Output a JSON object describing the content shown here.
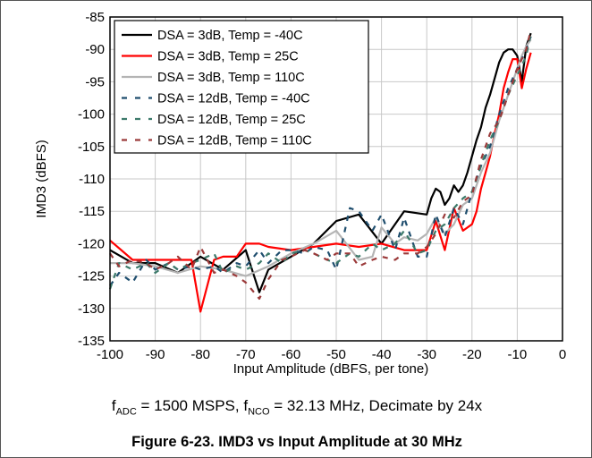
{
  "caption": "Figure 6-23. IMD3 vs Input Amplitude at 30 MHz",
  "condition": {
    "f1_main": "f",
    "f1_sub": "ADC",
    "f1_rest": " = 1500 MSPS, ",
    "f2_main": "f",
    "f2_sub": "NCO",
    "f2_rest": " = 32.13 MHz, Decimate by 24x"
  },
  "chart_data": {
    "type": "line",
    "xlabel": "Input Amplitude (dBFS, per tone)",
    "ylabel": "IMD3 (dBFS)",
    "xlim": [
      -100,
      0
    ],
    "ylim": [
      -135,
      -85
    ],
    "xticks": [
      "-100",
      "-90",
      "-80",
      "-70",
      "-60",
      "-50",
      "-40",
      "-30",
      "-20",
      "-10",
      "0"
    ],
    "yticks": [
      "-85",
      "-90",
      "-95",
      "-100",
      "-105",
      "-110",
      "-115",
      "-120",
      "-125",
      "-130",
      "-135"
    ],
    "grid": true,
    "legend_position": "top-left",
    "series": [
      {
        "name": "DSA = 3dB, Temp = -40C",
        "color": "#000000",
        "dash": "solid",
        "x": [
          -100,
          -95,
          -90,
          -85,
          -80,
          -75,
          -70,
          -67,
          -65,
          -60,
          -55,
          -50,
          -45,
          -40,
          -35,
          -30,
          -29,
          -28,
          -27,
          -26,
          -25,
          -24,
          -23,
          -22,
          -21,
          -20,
          -19,
          -18,
          -17,
          -16,
          -15,
          -14,
          -13,
          -12,
          -11,
          -10,
          -9,
          -8,
          -7
        ],
        "y": [
          -121,
          -123,
          -123,
          -124.5,
          -122,
          -124,
          -121,
          -127.5,
          -124,
          -122,
          -120,
          -116.5,
          -115.5,
          -120,
          -115,
          -115.5,
          -113,
          -111.5,
          -112,
          -114,
          -113,
          -111,
          -112,
          -111,
          -109,
          -106.5,
          -104,
          -102,
          -99,
          -97,
          -94.5,
          -92,
          -90.5,
          -90,
          -90,
          -91,
          -95,
          -89.5,
          -87.5
        ]
      },
      {
        "name": "DSA = 3dB, Temp = 25C",
        "color": "#ff0000",
        "dash": "solid",
        "x": [
          -100,
          -95,
          -90,
          -85,
          -82,
          -80,
          -77,
          -75,
          -72,
          -70,
          -67,
          -65,
          -60,
          -55,
          -50,
          -45,
          -40,
          -35,
          -30,
          -28,
          -26,
          -24,
          -22,
          -20,
          -19,
          -18,
          -17,
          -16,
          -15,
          -14,
          -13,
          -12,
          -11,
          -10,
          -9,
          -8,
          -7
        ],
        "y": [
          -119.5,
          -122.5,
          -122.5,
          -122.5,
          -122.5,
          -130.5,
          -122.5,
          -122,
          -122,
          -120,
          -120,
          -120.5,
          -121,
          -120.5,
          -120,
          -120.5,
          -120,
          -121,
          -121,
          -116.5,
          -121,
          -114.5,
          -118,
          -117,
          -115,
          -111.5,
          -109,
          -106.5,
          -103,
          -100,
          -96,
          -93.5,
          -91.5,
          -91.5,
          -96,
          -93,
          -90.5
        ]
      },
      {
        "name": "DSA = 3dB, Temp = 110C",
        "color": "#b4b4b4",
        "dash": "solid",
        "x": [
          -100,
          -95,
          -90,
          -85,
          -80,
          -75,
          -70,
          -65,
          -60,
          -55,
          -50,
          -45,
          -42,
          -40,
          -37,
          -35,
          -32,
          -30,
          -28,
          -26,
          -24,
          -22,
          -20,
          -18,
          -16,
          -14,
          -12,
          -10,
          -9,
          -8,
          -7
        ],
        "y": [
          -123,
          -123,
          -123.5,
          -124.5,
          -123.5,
          -124,
          -125,
          -123.5,
          -121.5,
          -120,
          -118,
          -122.5,
          -122,
          -117.5,
          -120,
          -119,
          -119.5,
          -118.5,
          -116,
          -118.5,
          -117,
          -114,
          -113,
          -109,
          -106,
          -101,
          -97,
          -93,
          -91,
          -89.5,
          -88.5
        ]
      },
      {
        "name": "DSA = 12dB, Temp = -40C",
        "color": "#1f4e6e",
        "dash": "dashed",
        "x": [
          -100,
          -98,
          -95,
          -92,
          -90,
          -87,
          -85,
          -82,
          -80,
          -77,
          -75,
          -72,
          -70,
          -67,
          -65,
          -62,
          -60,
          -57,
          -55,
          -52,
          -50,
          -47,
          -45,
          -42,
          -40,
          -37,
          -35,
          -32,
          -30,
          -28,
          -26,
          -24,
          -22,
          -20,
          -18,
          -16,
          -14,
          -12,
          -10,
          -8,
          -7
        ],
        "y": [
          -126.5,
          -124.5,
          -126,
          -122.5,
          -124,
          -123,
          -124,
          -123.5,
          -124,
          -123.5,
          -124.5,
          -123,
          -123.5,
          -121,
          -123,
          -121,
          -121,
          -121.5,
          -120.5,
          -121,
          -124,
          -114.5,
          -115,
          -118,
          -115.5,
          -121,
          -116,
          -122,
          -122,
          -115.5,
          -119,
          -114.5,
          -117,
          -112,
          -108,
          -105,
          -100,
          -96,
          -93,
          -90,
          -88
        ]
      },
      {
        "name": "DSA = 12dB, Temp = 25C",
        "color": "#3c7a6a",
        "dash": "dashed",
        "x": [
          -100,
          -98,
          -95,
          -92,
          -90,
          -87,
          -85,
          -82,
          -80,
          -77,
          -75,
          -72,
          -70,
          -67,
          -65,
          -62,
          -60,
          -57,
          -55,
          -52,
          -50,
          -47,
          -45,
          -42,
          -40,
          -37,
          -35,
          -32,
          -30,
          -28,
          -26,
          -24,
          -22,
          -20,
          -18,
          -16,
          -14,
          -12,
          -10,
          -8,
          -7
        ],
        "y": [
          -127,
          -123,
          -124,
          -123,
          -124.5,
          -123,
          -124,
          -123,
          -122.5,
          -121.5,
          -124.5,
          -123.5,
          -124,
          -123,
          -121.5,
          -123,
          -121.5,
          -121,
          -121.5,
          -122.5,
          -123,
          -121.5,
          -122,
          -120,
          -121,
          -120,
          -118,
          -121.5,
          -121,
          -118,
          -117,
          -114.5,
          -113,
          -112,
          -108,
          -104,
          -101,
          -97,
          -94,
          -91,
          -87.5
        ]
      },
      {
        "name": "DSA = 12dB, Temp = 110C",
        "color": "#9b3a3a",
        "dash": "dashed",
        "x": [
          -100,
          -98,
          -95,
          -92,
          -90,
          -87,
          -85,
          -82,
          -80,
          -77,
          -75,
          -72,
          -70,
          -67,
          -65,
          -62,
          -60,
          -57,
          -55,
          -52,
          -50,
          -47,
          -45,
          -42,
          -40,
          -37,
          -35,
          -32,
          -30,
          -28,
          -26,
          -24,
          -22,
          -20,
          -18,
          -16,
          -14,
          -12,
          -10,
          -8,
          -7
        ],
        "y": [
          -121.5,
          -123.5,
          -122.5,
          -123,
          -124,
          -123,
          -122,
          -124,
          -120.5,
          -124.5,
          -124,
          -125,
          -126,
          -128.5,
          -125.5,
          -122.5,
          -122,
          -121,
          -121.5,
          -122.5,
          -121.5,
          -121.5,
          -123.5,
          -122.5,
          -122,
          -122.5,
          -121.5,
          -121.5,
          -120.5,
          -118.5,
          -115.5,
          -116,
          -113.5,
          -112.5,
          -107,
          -103,
          -101,
          -97,
          -93,
          -90,
          -87
        ]
      }
    ]
  }
}
